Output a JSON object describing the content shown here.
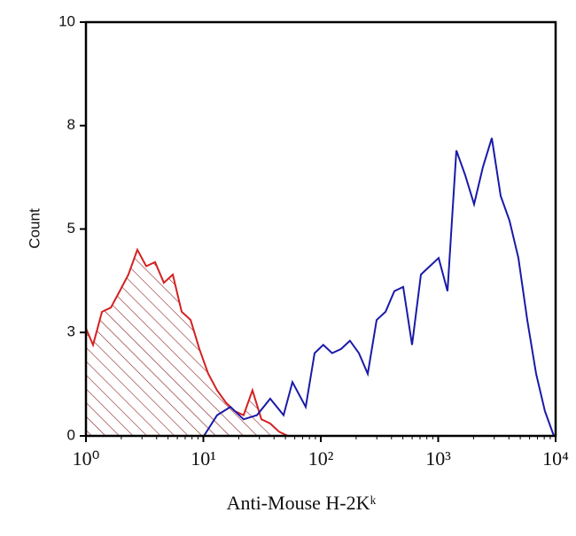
{
  "chart_data": {
    "type": "histogram-line",
    "x_label": "Anti-Mouse H-2Kᵏ",
    "y_label": "Count",
    "xscale": "log",
    "xlim": [
      1,
      10000
    ],
    "xticks": [
      {
        "value": 1,
        "label": "10⁰"
      },
      {
        "value": 10,
        "label": "10¹"
      },
      {
        "value": 100,
        "label": "10²"
      },
      {
        "value": 1000,
        "label": "10³"
      },
      {
        "value": 10000,
        "label": "10⁴"
      }
    ],
    "ylim": [
      0,
      10
    ],
    "yticks": [
      0,
      {
        "value": 2.5,
        "label": "3"
      },
      5,
      {
        "value": 7.5,
        "label": "8"
      },
      10
    ],
    "series": [
      {
        "color": "#d42020",
        "hatched": true,
        "x": [
          1,
          1.15,
          1.37,
          1.63,
          1.94,
          2.3,
          2.74,
          3.26,
          3.88,
          4.61,
          5.49,
          6.53,
          7.78,
          9.25,
          11.0,
          13.1,
          15.6,
          18.5,
          22.0,
          26.2,
          31.2,
          37.1,
          44.1,
          52.5
        ],
        "values": [
          2.6,
          2.2,
          3.0,
          3.1,
          3.5,
          3.9,
          4.5,
          4.1,
          4.2,
          3.7,
          3.9,
          3.0,
          2.8,
          2.1,
          1.5,
          1.1,
          0.8,
          0.6,
          0.5,
          1.1,
          0.4,
          0.3,
          0.1,
          0.0
        ]
      },
      {
        "color": "#1a1aa8",
        "hatched": false,
        "x": [
          10.1,
          13.1,
          17.0,
          22.0,
          28.6,
          37.1,
          48.2,
          57.3,
          74.4,
          88.5,
          105,
          125,
          149,
          177,
          211,
          251,
          299,
          356,
          423,
          503,
          599,
          712,
          848,
          1009,
          1200,
          1428,
          1700,
          2022,
          2405,
          2862,
          3405,
          4053,
          4823,
          5730,
          6823,
          8110,
          9660
        ],
        "values": [
          0.0,
          0.5,
          0.7,
          0.4,
          0.5,
          0.9,
          0.5,
          1.3,
          0.7,
          2.0,
          2.2,
          2.0,
          2.1,
          2.3,
          2.0,
          1.5,
          2.8,
          3.0,
          3.5,
          3.6,
          2.2,
          3.9,
          4.1,
          4.3,
          3.5,
          6.9,
          6.3,
          5.6,
          6.5,
          7.2,
          5.8,
          5.2,
          4.3,
          2.8,
          1.5,
          0.6,
          0.0
        ]
      }
    ]
  }
}
